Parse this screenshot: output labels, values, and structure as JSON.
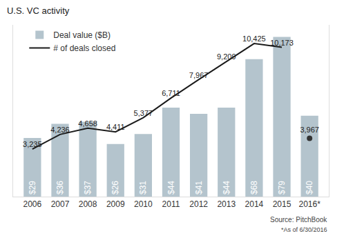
{
  "chart_data": {
    "type": "bar",
    "title": "U.S. VC activity",
    "categories": [
      "2006",
      "2007",
      "2008",
      "2009",
      "2010",
      "2011",
      "2012",
      "2013",
      "2014",
      "2015",
      "2016*"
    ],
    "series": [
      {
        "name": "Deal value ($B)",
        "type": "bar",
        "color": "#b4c4cd",
        "values": [
          29,
          36,
          37,
          26,
          31,
          44,
          41,
          44,
          68,
          79,
          40
        ],
        "value_labels": [
          "$29",
          "$36",
          "$37",
          "$26",
          "$31",
          "$44",
          "$41",
          "$44",
          "$68",
          "$79",
          "$40"
        ]
      },
      {
        "name": "# of deals closed",
        "type": "line",
        "color": "#1a1a1a",
        "axis": "y2",
        "values": [
          3235,
          4236,
          4658,
          4411,
          5377,
          6711,
          7967,
          9209,
          10425,
          10173,
          null
        ],
        "value_labels": [
          "3,235",
          "4,236",
          "4,658",
          "4,411",
          "5,377",
          "6,711",
          "7,967",
          "9,209",
          "10,425",
          "10,173",
          null
        ]
      },
      {
        "type": "scatter",
        "marker": "circle",
        "color": "#333333",
        "axis": "y2",
        "values": [
          null,
          null,
          null,
          null,
          null,
          null,
          null,
          null,
          null,
          null,
          3967
        ],
        "value_labels": [
          null,
          null,
          null,
          null,
          null,
          null,
          null,
          null,
          null,
          null,
          "3,967"
        ]
      }
    ],
    "ylim": [
      0,
      85
    ],
    "yticks": [],
    "y2lim": [
      0,
      11700
    ],
    "y2ticks": [],
    "tick_labels": "x",
    "grid": false,
    "legend": "top left",
    "data_labels": true,
    "annotations": [
      "Source: PitchBook",
      "*As of 6/30/2016"
    ]
  }
}
